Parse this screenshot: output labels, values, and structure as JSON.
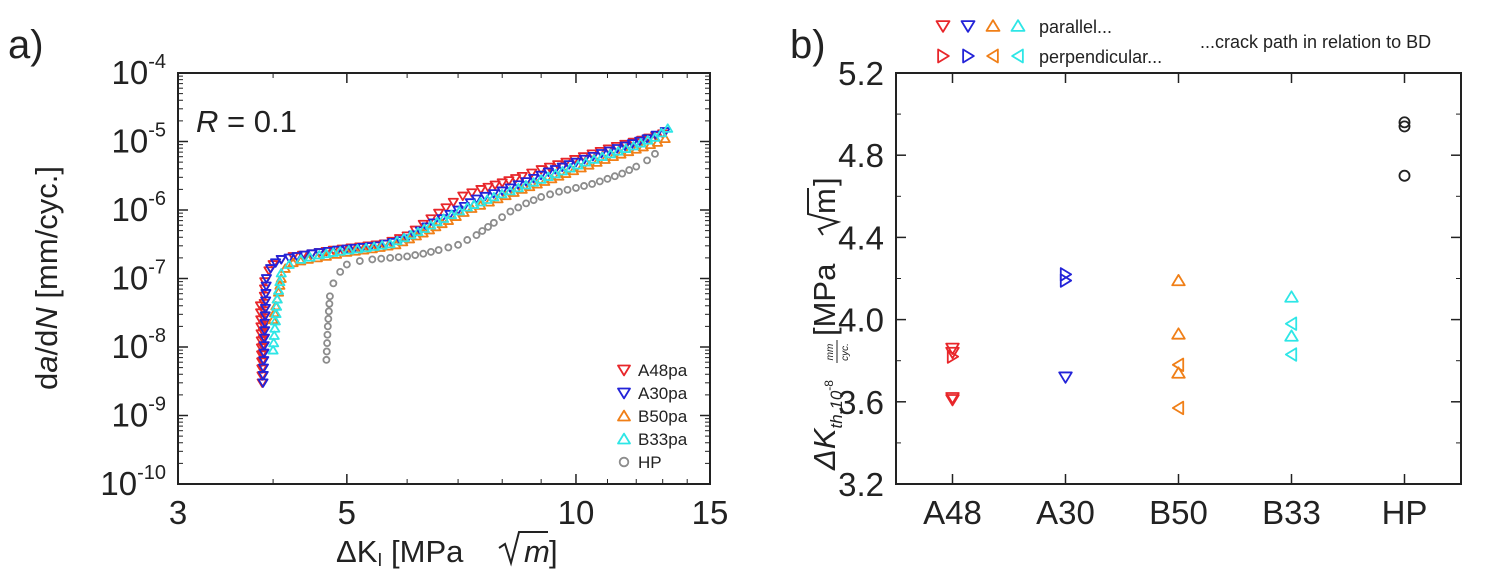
{
  "chart_data": [
    {
      "type": "scatter",
      "panel_label": "a)",
      "annotation": {
        "prefix": "R",
        "text": " = 0.1"
      },
      "xlabel": {
        "pre": "ΔK",
        "sub": "I",
        "post": " [MPa",
        "sqrt_arg": "m",
        "close": "]"
      },
      "ylabel": {
        "p1": "d",
        "p2": "a",
        "p3": "/d",
        "p4": "N",
        "p5": " [mm/cyc.]"
      },
      "x_scale": "log",
      "y_scale": "log",
      "xlim": [
        3,
        15
      ],
      "ylim": [
        1e-10,
        0.0001
      ],
      "x_ticks": [
        3,
        5,
        10,
        15
      ],
      "x_tick_labels": [
        "3",
        "5",
        "10",
        "15"
      ],
      "y_ticks": [
        1e-10,
        1e-09,
        1e-08,
        1e-07,
        1e-06,
        1e-05,
        0.0001
      ],
      "y_tick_labels": [
        {
          "base": "10",
          "exp": "-10"
        },
        {
          "base": "10",
          "exp": "-9"
        },
        {
          "base": "10",
          "exp": "-8"
        },
        {
          "base": "10",
          "exp": "-7"
        },
        {
          "base": "10",
          "exp": "-6"
        },
        {
          "base": "10",
          "exp": "-5"
        },
        {
          "base": "10",
          "exp": "-4"
        }
      ],
      "legend_position": "bottom-right",
      "series": [
        {
          "name": "A48pa",
          "color": "#e8262a",
          "marker": "triangle-down",
          "x": [
            3.85,
            3.87,
            3.9,
            3.95,
            4.0,
            4.1,
            4.25,
            4.5,
            4.8,
            5.2,
            5.6,
            6.0,
            6.3,
            6.6,
            6.9,
            7.1,
            7.5,
            8.0,
            8.5,
            9.0,
            9.7,
            10.5,
            11.3,
            12.2,
            13.0
          ],
          "y": [
            4e-08,
            3e-09,
            9e-08,
            1.3e-07,
            1.6e-07,
            1.9e-07,
            2.1e-07,
            2.3e-07,
            2.6e-07,
            2.9e-07,
            3.2e-07,
            4.2e-07,
            6.2e-07,
            9e-07,
            1.3e-06,
            1.6e-06,
            2e-06,
            2.5e-06,
            3.1e-06,
            3.9e-06,
            5e-06,
            6.6e-06,
            8.5e-06,
            1.05e-05,
            1.3e-05
          ]
        },
        {
          "name": "A30pa",
          "color": "#2323d8",
          "marker": "triangle-down",
          "x": [
            3.88,
            3.92,
            3.97,
            4.03,
            4.1,
            4.3,
            4.6,
            5.0,
            5.5,
            6.0,
            6.5,
            7.0,
            7.4,
            8.0,
            8.6,
            9.2,
            10.0,
            10.8,
            11.6,
            12.4,
            13.1
          ],
          "y": [
            3e-09,
            1e-07,
            1.4e-07,
            1.7e-07,
            1.9e-07,
            2.1e-07,
            2.4e-07,
            2.7e-07,
            3e-07,
            3.8e-07,
            6.5e-07,
            1e-06,
            1.45e-06,
            1.9e-06,
            2.6e-06,
            3.6e-06,
            5e-06,
            6.7e-06,
            8.6e-06,
            1.1e-05,
            1.4e-05
          ]
        },
        {
          "name": "B50pa",
          "color": "#f07f17",
          "marker": "triangle-up",
          "x": [
            4.0,
            4.05,
            4.1,
            4.15,
            4.25,
            4.45,
            4.7,
            5.0,
            5.4,
            5.8,
            6.3,
            6.8,
            7.3,
            7.9,
            8.5,
            9.1,
            9.7,
            10.4,
            11.2,
            12.0,
            12.8,
            13.1
          ],
          "y": [
            2.5e-08,
            5e-08,
            1e-07,
            1.4e-07,
            1.7e-07,
            1.9e-07,
            2.1e-07,
            2.4e-07,
            2.7e-07,
            3.1e-07,
            4.6e-07,
            7e-07,
            1.05e-06,
            1.45e-06,
            2e-06,
            2.6e-06,
            3.4e-06,
            4.5e-06,
            6e-06,
            7.7e-06,
            9.7e-06,
            1.1e-05
          ]
        },
        {
          "name": "B33pa",
          "color": "#2ee6e6",
          "marker": "triangle-up",
          "x": [
            4.0,
            4.05,
            4.1,
            4.2,
            4.35,
            4.6,
            4.9,
            5.3,
            5.7,
            6.2,
            6.7,
            7.2,
            7.8,
            8.4,
            9.0,
            9.6,
            10.3,
            11.1,
            11.9,
            12.7,
            13.2
          ],
          "y": [
            9e-09,
            5e-08,
            1.2e-07,
            1.6e-07,
            1.9e-07,
            2.2e-07,
            2.5e-07,
            2.8e-07,
            3.2e-07,
            4.8e-07,
            7.5e-07,
            1.1e-06,
            1.55e-06,
            2.1e-06,
            2.8e-06,
            3.7e-06,
            5e-06,
            6.6e-06,
            8.6e-06,
            1.15e-05,
            1.55e-05
          ]
        },
        {
          "name": "HP",
          "color": "#8c8c8c",
          "marker": "circle",
          "x": [
            4.7,
            4.72,
            4.75,
            4.8,
            4.9,
            5.0,
            5.2,
            5.4,
            5.7,
            6.0,
            6.3,
            6.6,
            7.0,
            7.4,
            7.8,
            8.2,
            8.6,
            9.0,
            9.5,
            10.0,
            10.5,
            11.0,
            11.5,
            12.0,
            12.4,
            12.7
          ],
          "y": [
            6.5e-09,
            2e-08,
            5.5e-08,
            8.5e-08,
            1.25e-07,
            1.6e-07,
            1.8e-07,
            1.9e-07,
            2e-07,
            2.1e-07,
            2.3e-07,
            2.6e-07,
            3.1e-07,
            4.3e-07,
            6.5e-07,
            9.5e-07,
            1.25e-06,
            1.55e-06,
            1.85e-06,
            2.1e-06,
            2.4e-06,
            2.85e-06,
            3.4e-06,
            4.3e-06,
            5.3e-06,
            6.6e-06
          ]
        }
      ]
    },
    {
      "type": "scatter",
      "panel_label": "b)",
      "ylabel": {
        "pre": "ΔK",
        "sub_main": "th,10",
        "sub_exp": "-8",
        "frac_num": "mm",
        "frac_den": "cyc.",
        "post": " [MPa",
        "sqrt_arg": "m",
        "close": "]"
      },
      "categories": [
        "A48",
        "A30",
        "B50",
        "B33",
        "HP"
      ],
      "ylim": [
        3.2,
        5.2
      ],
      "y_ticks": [
        3.2,
        3.6,
        4.0,
        4.4,
        4.8,
        5.2
      ],
      "y_tick_labels": [
        "3.2",
        "3.6",
        "4.0",
        "4.4",
        "4.8",
        "5.2"
      ],
      "legend": {
        "position": "top",
        "rows": [
          {
            "label": "parallel...",
            "markers": [
              {
                "marker": "triangle-down",
                "color": "#e8262a"
              },
              {
                "marker": "triangle-down",
                "color": "#2323d8"
              },
              {
                "marker": "triangle-up",
                "color": "#f07f17"
              },
              {
                "marker": "triangle-up",
                "color": "#2ee6e6"
              }
            ]
          },
          {
            "label": "perpendicular...",
            "markers": [
              {
                "marker": "triangle-right",
                "color": "#e8262a"
              },
              {
                "marker": "triangle-right",
                "color": "#2323d8"
              },
              {
                "marker": "triangle-left",
                "color": "#f07f17"
              },
              {
                "marker": "triangle-left",
                "color": "#2ee6e6"
              }
            ]
          }
        ],
        "note": "...crack path in relation to BD"
      },
      "points": [
        {
          "category": "A48",
          "value": 3.86,
          "marker": "triangle-down",
          "color": "#e8262a"
        },
        {
          "category": "A48",
          "value": 3.84,
          "marker": "triangle-down",
          "color": "#e8262a"
        },
        {
          "category": "A48",
          "value": 3.82,
          "marker": "triangle-right",
          "color": "#e8262a"
        },
        {
          "category": "A48",
          "value": 3.62,
          "marker": "triangle-down",
          "color": "#e8262a"
        },
        {
          "category": "A48",
          "value": 3.61,
          "marker": "triangle-down",
          "color": "#e8262a"
        },
        {
          "category": "A30",
          "value": 4.22,
          "marker": "triangle-right",
          "color": "#2323d8"
        },
        {
          "category": "A30",
          "value": 4.19,
          "marker": "triangle-right",
          "color": "#2323d8"
        },
        {
          "category": "A30",
          "value": 3.72,
          "marker": "triangle-down",
          "color": "#2323d8"
        },
        {
          "category": "B50",
          "value": 4.19,
          "marker": "triangle-up",
          "color": "#f07f17"
        },
        {
          "category": "B50",
          "value": 3.93,
          "marker": "triangle-up",
          "color": "#f07f17"
        },
        {
          "category": "B50",
          "value": 3.78,
          "marker": "triangle-left",
          "color": "#f07f17"
        },
        {
          "category": "B50",
          "value": 3.74,
          "marker": "triangle-up",
          "color": "#f07f17"
        },
        {
          "category": "B50",
          "value": 3.57,
          "marker": "triangle-left",
          "color": "#f07f17"
        },
        {
          "category": "B33",
          "value": 4.11,
          "marker": "triangle-up",
          "color": "#2ee6e6"
        },
        {
          "category": "B33",
          "value": 3.98,
          "marker": "triangle-left",
          "color": "#2ee6e6"
        },
        {
          "category": "B33",
          "value": 3.92,
          "marker": "triangle-up",
          "color": "#2ee6e6"
        },
        {
          "category": "B33",
          "value": 3.83,
          "marker": "triangle-left",
          "color": "#2ee6e6"
        },
        {
          "category": "HP",
          "value": 4.96,
          "marker": "circle",
          "color": "#222222"
        },
        {
          "category": "HP",
          "value": 4.94,
          "marker": "circle",
          "color": "#222222"
        },
        {
          "category": "HP",
          "value": 4.7,
          "marker": "circle",
          "color": "#222222"
        }
      ]
    }
  ]
}
